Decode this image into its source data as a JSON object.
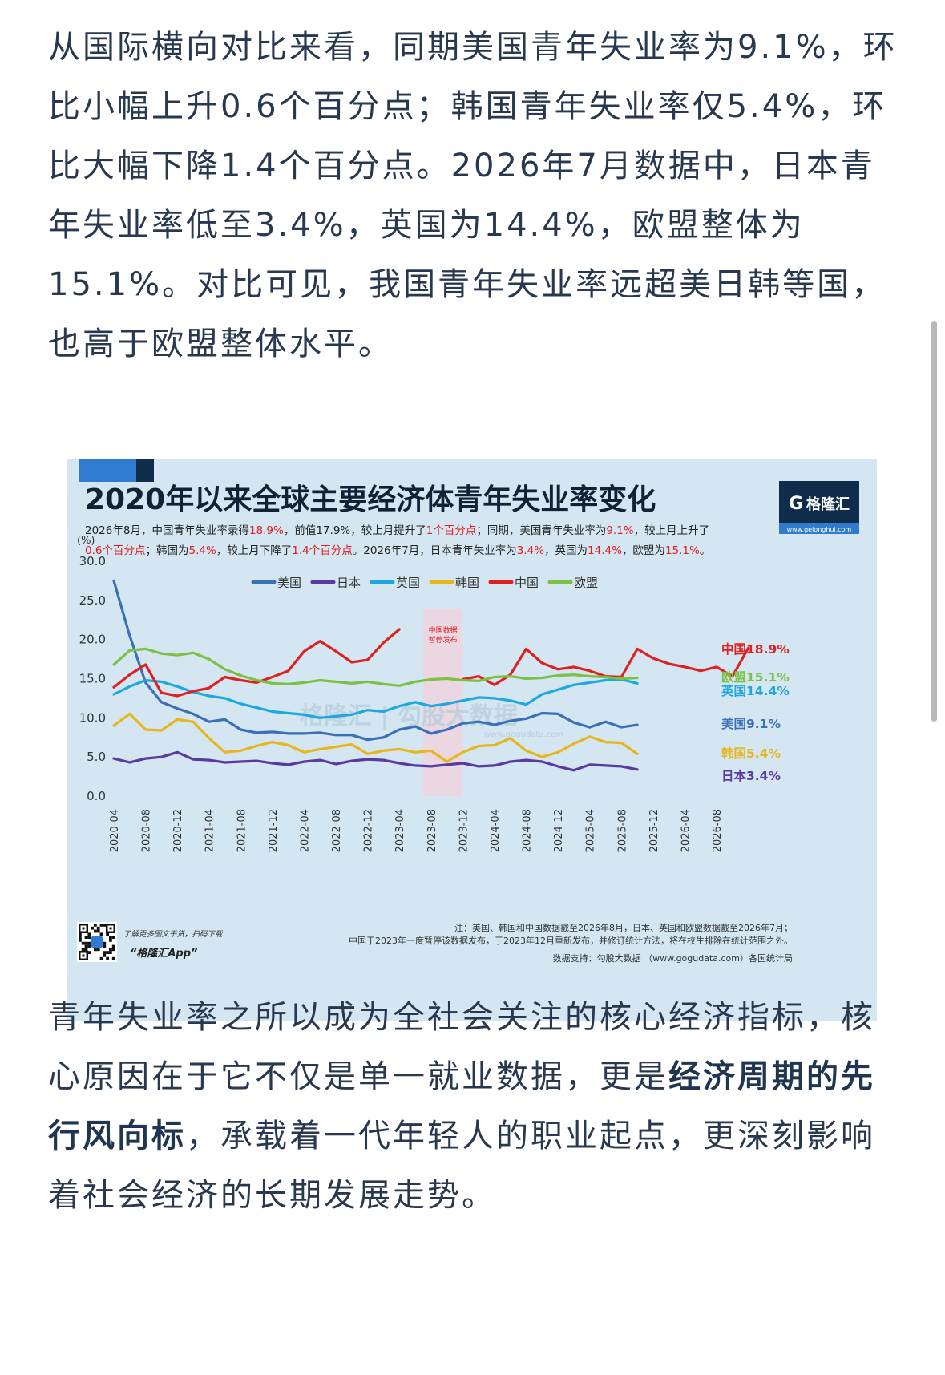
{
  "article": {
    "paragraph1": "从国际横向对比来看，同期美国青年失业率为9.1%，环比小幅上升0.6个百分点；韩国青年失业率仅5.4%，环比大幅下降1.4个百分点。2026年7月数据中，日本青年失业率低至3.4%，英国为14.4%，欧盟整体为15.1%。对比可见，我国青年失业率远超美日韩等国，也高于欧盟整体水平。",
    "paragraph2_part1": "青年失业率之所以成为全社会关注的核心经济指标，核心原因在于它不仅是单一就业数据，更是",
    "paragraph2_bold": "经济周期的先行风向标",
    "paragraph2_part2": "，承载着一代年轻人的职业起点，更深刻影响着社会经济的长期发展走势。"
  },
  "infographic": {
    "title": "2020年以来全球主要经济体青年失业率变化",
    "brand": "格隆汇",
    "brand_url": "www.gelonghui.com",
    "subtitle_line1": [
      {
        "t": "2026年8月，中国青年失业率录得",
        "hl": false
      },
      {
        "t": "18.9%",
        "hl": true
      },
      {
        "t": "，前值17.9%，较上月提升了",
        "hl": false
      },
      {
        "t": "1个百分点",
        "hl": true
      },
      {
        "t": "；同期，美国青年失业率为",
        "hl": false
      },
      {
        "t": "9.1%",
        "hl": true
      },
      {
        "t": "，较上月上升了",
        "hl": false
      }
    ],
    "subtitle_line2": [
      {
        "t": "0.6个百分点",
        "hl": true
      },
      {
        "t": "；韩国为",
        "hl": false
      },
      {
        "t": "5.4%",
        "hl": true
      },
      {
        "t": "，较上月下降了",
        "hl": false
      },
      {
        "t": "1.4个百分点",
        "hl": true
      },
      {
        "t": "。2026年7月，日本青年失业率为",
        "hl": false
      },
      {
        "t": "3.4%",
        "hl": true
      },
      {
        "t": "，英国为",
        "hl": false
      },
      {
        "t": "14.4%",
        "hl": true
      },
      {
        "t": "，欧盟为",
        "hl": false
      },
      {
        "t": "15.1%",
        "hl": true
      },
      {
        "t": "。",
        "hl": false
      }
    ],
    "pause_note": [
      "中国数据",
      "暂停发布"
    ],
    "watermark": "格隆汇 | 勾股大数据",
    "watermark_url": "www.gogudata.com",
    "app_promo": "了解更多图文干货，扫码下载",
    "app_name": "“格隆汇App”",
    "footnote1": "注：美国、韩国和中国数据截至2026年8月，日本、英国和欧盟数据截至2026年7月；",
    "footnote2": "中国于2023年一度暂停该数据发布，于2023年12月重新发布，并修订统计方法，将在校生排除在统计范围之外。",
    "source": "数据支持：勾股大数据 （www.gogudata.com）各国统计局",
    "colors": {
      "highlight": "#e02020",
      "navy": "#0f2d4a",
      "accent_blue": "#2e7bd0",
      "background": "#d3e6f1",
      "pause_band": "#ead7e2"
    }
  },
  "chart_data": {
    "type": "line",
    "ylabel": "(%)",
    "ylim": [
      0,
      30
    ],
    "yticks": [
      "0.0",
      "5.0",
      "10.0",
      "15.0",
      "20.0",
      "25.0",
      "30.0"
    ],
    "xticks": [
      "2020-04",
      "2020-08",
      "2020-12",
      "2021-04",
      "2021-08",
      "2021-12",
      "2022-04",
      "2022-08",
      "2022-12",
      "2023-04",
      "2023-08",
      "2023-12",
      "2024-04",
      "2024-08",
      "2024-12",
      "2025-04",
      "2025-08",
      "2025-12",
      "2026-04",
      "2026-08"
    ],
    "grid": false,
    "legend_position": "top",
    "shaded_range": [
      "2023-07",
      "2023-12"
    ],
    "series": [
      {
        "name": "美国",
        "color": "#3b6fb6",
        "end_label": "美国9.1%",
        "label_color": "#3b6fb6",
        "start": "2020-04",
        "step": 2,
        "values": [
          27.5,
          20.5,
          14.5,
          12.0,
          11.2,
          10.5,
          9.5,
          9.8,
          8.5,
          8.1,
          8.2,
          8.0,
          8.0,
          8.1,
          7.8,
          7.8,
          7.2,
          7.5,
          8.5,
          8.9,
          8.0,
          8.5,
          9.3,
          9.5,
          9.1,
          9.6,
          9.9,
          10.6,
          10.5,
          9.4,
          8.8,
          9.5,
          8.8,
          9.1
        ]
      },
      {
        "name": "日本",
        "color": "#5a3aa0",
        "end_label": "日本3.4%",
        "label_color": "#5a3aa0",
        "start": "2020-04",
        "step": 2,
        "values": [
          4.8,
          4.3,
          4.8,
          5.0,
          5.6,
          4.7,
          4.6,
          4.3,
          4.4,
          4.5,
          4.2,
          4.0,
          4.4,
          4.6,
          4.1,
          4.5,
          4.7,
          4.6,
          4.2,
          3.9,
          3.8,
          4.0,
          4.2,
          3.8,
          3.9,
          4.4,
          4.6,
          4.4,
          3.8,
          3.3,
          4.0,
          3.9,
          3.8,
          3.4
        ]
      },
      {
        "name": "英国",
        "color": "#1fa7df",
        "end_label": "英国14.4%",
        "label_color": "#1fa7df",
        "start": "2020-04",
        "step": 2,
        "values": [
          13.0,
          14.0,
          14.8,
          14.6,
          14.0,
          13.3,
          12.8,
          12.5,
          11.8,
          11.3,
          10.8,
          10.6,
          10.4,
          10.0,
          10.2,
          10.4,
          11.0,
          10.8,
          11.5,
          12.0,
          11.5,
          11.8,
          12.2,
          12.6,
          12.5,
          12.2,
          11.7,
          13.0,
          13.6,
          14.2,
          14.5,
          14.8,
          14.9,
          14.4
        ]
      },
      {
        "name": "韩国",
        "color": "#e8b61c",
        "end_label": "韩国5.4%",
        "label_color": "#e8b61c",
        "start": "2020-04",
        "step": 2,
        "values": [
          9.0,
          10.5,
          8.5,
          8.4,
          9.8,
          9.5,
          7.4,
          5.6,
          5.8,
          6.4,
          6.9,
          6.5,
          5.6,
          6.0,
          6.3,
          6.6,
          5.4,
          5.8,
          6.0,
          5.6,
          5.8,
          4.4,
          5.6,
          6.4,
          6.5,
          7.4,
          5.8,
          5.0,
          5.6,
          6.7,
          7.6,
          6.9,
          6.8,
          5.4
        ]
      },
      {
        "name": "中国",
        "color": "#e02020",
        "end_label": "中国18.9%",
        "label_color": "#e02020",
        "segments": [
          {
            "start": "2020-04",
            "step": 2,
            "values": [
              13.9,
              15.5,
              16.8,
              13.2,
              12.8,
              13.4,
              13.8,
              15.2,
              14.8,
              14.5,
              15.2,
              16.0,
              18.5,
              19.8,
              18.5,
              17.1,
              17.4,
              19.6,
              21.3
            ]
          },
          {
            "start": "2023-12",
            "step": 2,
            "values": [
              14.9,
              15.3,
              14.2,
              15.5,
              18.8,
              17.0,
              16.2,
              16.5,
              16.0,
              15.3,
              15.2,
              18.8,
              17.6,
              16.9,
              16.5,
              16.0,
              16.5,
              15.3,
              18.9
            ]
          }
        ]
      },
      {
        "name": "欧盟",
        "color": "#7ac144",
        "end_label": "欧盟15.1%",
        "label_color": "#7ac144",
        "start": "2020-04",
        "step": 2,
        "values": [
          16.8,
          18.6,
          18.8,
          18.2,
          18.0,
          18.3,
          17.5,
          16.2,
          15.4,
          14.8,
          14.4,
          14.3,
          14.5,
          14.8,
          14.6,
          14.4,
          14.6,
          14.3,
          14.1,
          14.6,
          14.9,
          15.0,
          14.8,
          14.7,
          15.2,
          15.3,
          15.0,
          15.1,
          15.4,
          15.5,
          15.3,
          15.2,
          15.0,
          15.1
        ]
      }
    ]
  }
}
